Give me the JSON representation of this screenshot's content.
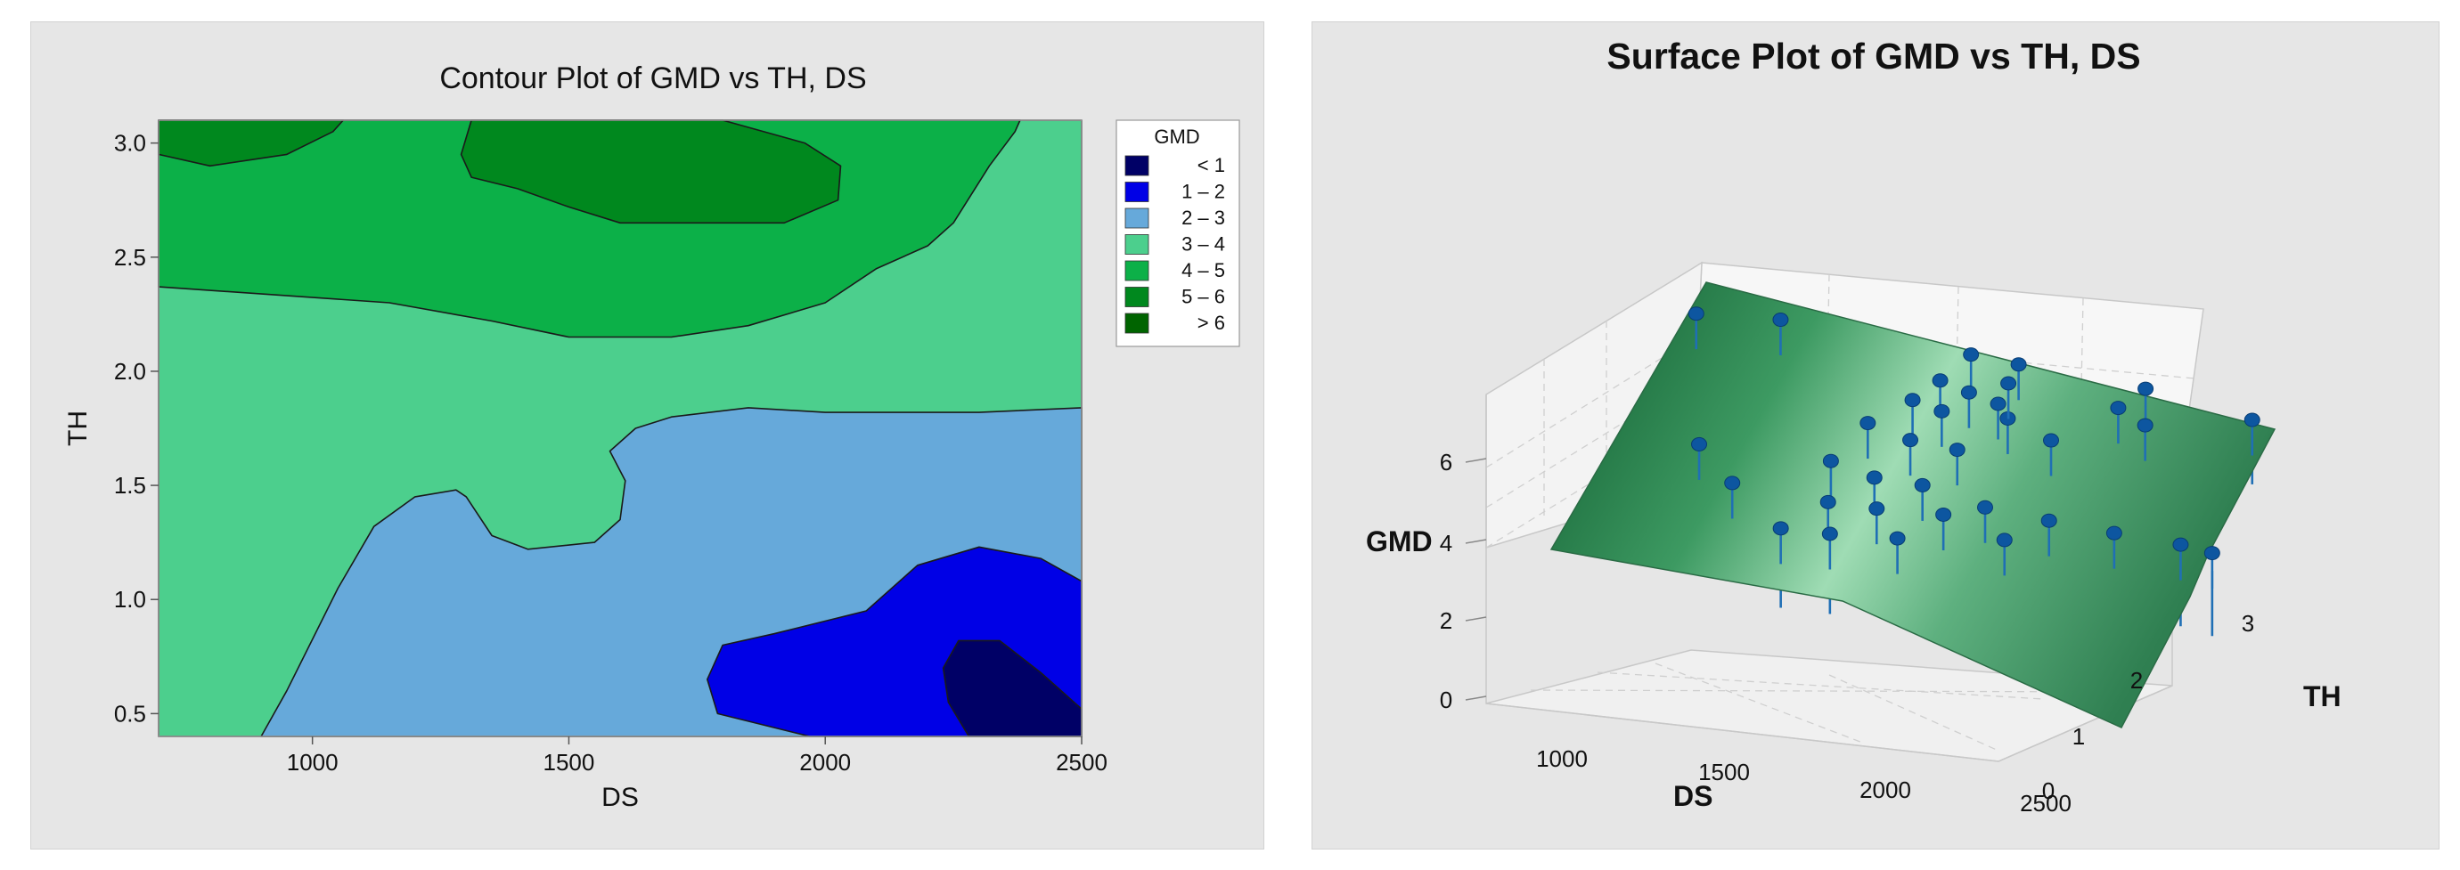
{
  "chart_data": [
    {
      "type": "contour",
      "title": "Contour Plot of GMD vs TH, DS",
      "xlabel": "DS",
      "ylabel": "TH",
      "xlim": [
        700,
        2500
      ],
      "ylim": [
        0.4,
        3.1
      ],
      "xticks": [
        "1000",
        "1500",
        "2000",
        "2500"
      ],
      "yticks": [
        "0.5",
        "1.0",
        "1.5",
        "2.0",
        "2.5",
        "3.0"
      ],
      "legend": {
        "title": "GMD",
        "entries": [
          {
            "label": "<  1",
            "color": "#000066"
          },
          {
            "label": "1 –  2",
            "color": "#0000e6"
          },
          {
            "label": "2 –  3",
            "color": "#66a9da"
          },
          {
            "label": "3 –  4",
            "color": "#4ccf8d"
          },
          {
            "label": "4 –  5",
            "color": "#0cb048"
          },
          {
            "label": "5 –  6",
            "color": "#00881e"
          },
          {
            "label": ">  6",
            "color": "#006400"
          }
        ]
      },
      "regions": [
        {
          "level": "3 - 4",
          "color": "#4ccf8d",
          "points": [
            [
              700,
              0.4
            ],
            [
              2500,
              0.4
            ],
            [
              2500,
              3.1
            ],
            [
              700,
              3.1
            ]
          ]
        },
        {
          "level": "4 - 5",
          "color": "#0cb048",
          "points": [
            [
              700,
              2.37
            ],
            [
              1150,
              2.3
            ],
            [
              1350,
              2.22
            ],
            [
              1500,
              2.15
            ],
            [
              1700,
              2.15
            ],
            [
              1850,
              2.2
            ],
            [
              2000,
              2.3
            ],
            [
              2100,
              2.45
            ],
            [
              2200,
              2.55
            ],
            [
              2250,
              2.65
            ],
            [
              2320,
              2.9
            ],
            [
              2370,
              3.05
            ],
            [
              2380,
              3.1
            ],
            [
              700,
              3.1
            ]
          ]
        },
        {
          "level": "5 - 6",
          "color": "#00881e",
          "points": [
            [
              700,
              2.95
            ],
            [
              800,
              2.9
            ],
            [
              950,
              2.95
            ],
            [
              1040,
              3.05
            ],
            [
              1060,
              3.1
            ],
            [
              700,
              3.1
            ]
          ]
        },
        {
          "level": "5 - 6",
          "color": "#00881e",
          "points": [
            [
              1310,
              3.1
            ],
            [
              1800,
              3.1
            ],
            [
              1960,
              3.0
            ],
            [
              2030,
              2.9
            ],
            [
              2025,
              2.75
            ],
            [
              1920,
              2.65
            ],
            [
              1600,
              2.65
            ],
            [
              1500,
              2.72
            ],
            [
              1400,
              2.8
            ],
            [
              1310,
              2.85
            ],
            [
              1290,
              2.95
            ]
          ]
        },
        {
          "level": "2 - 3",
          "color": "#66a9da",
          "points": [
            [
              900,
              0.4
            ],
            [
              2500,
              0.4
            ],
            [
              2500,
              1.84
            ],
            [
              2300,
              1.82
            ],
            [
              2000,
              1.82
            ],
            [
              1850,
              1.84
            ],
            [
              1700,
              1.8
            ],
            [
              1630,
              1.75
            ],
            [
              1580,
              1.65
            ],
            [
              1610,
              1.52
            ],
            [
              1600,
              1.35
            ],
            [
              1550,
              1.25
            ],
            [
              1420,
              1.22
            ],
            [
              1350,
              1.28
            ],
            [
              1300,
              1.45
            ],
            [
              1280,
              1.48
            ],
            [
              1200,
              1.45
            ],
            [
              1120,
              1.32
            ],
            [
              1050,
              1.05
            ],
            [
              950,
              0.6
            ]
          ]
        },
        {
          "level": "1 - 2",
          "color": "#0000e6",
          "points": [
            [
              1970,
              0.4
            ],
            [
              2500,
              0.4
            ],
            [
              2500,
              1.08
            ],
            [
              2420,
              1.18
            ],
            [
              2300,
              1.23
            ],
            [
              2180,
              1.15
            ],
            [
              2080,
              0.95
            ],
            [
              1900,
              0.85
            ],
            [
              1800,
              0.8
            ],
            [
              1770,
              0.65
            ],
            [
              1790,
              0.5
            ]
          ]
        },
        {
          "level": "< 1",
          "color": "#000066",
          "points": [
            [
              2280,
              0.4
            ],
            [
              2500,
              0.4
            ],
            [
              2500,
              0.52
            ],
            [
              2420,
              0.68
            ],
            [
              2340,
              0.82
            ],
            [
              2260,
              0.82
            ],
            [
              2230,
              0.7
            ],
            [
              2240,
              0.55
            ]
          ]
        }
      ]
    },
    {
      "type": "surface3d",
      "title": "Surface Plot of GMD vs TH, DS",
      "xlabel": "DS",
      "ylabel": "TH",
      "zlabel": "GMD",
      "xticks": [
        "1000",
        "1500",
        "2000",
        "2500"
      ],
      "yticks": [
        "0",
        "1",
        "2",
        "3"
      ],
      "zticks": [
        "0",
        "2",
        "4",
        "6"
      ],
      "surface_color": "#3f9a63",
      "points": [
        {
          "ds": 700,
          "th": 2.9,
          "gmd": 6.2
        },
        {
          "ds": 950,
          "th": 3.0,
          "gmd": 6.0
        },
        {
          "ds": 1550,
          "th": 3.0,
          "gmd": 5.5
        },
        {
          "ds": 1700,
          "th": 3.0,
          "gmd": 5.3
        },
        {
          "ds": 2100,
          "th": 3.0,
          "gmd": 4.9
        },
        {
          "ds": 1500,
          "th": 2.6,
          "gmd": 5.2
        },
        {
          "ds": 1600,
          "th": 2.5,
          "gmd": 5.0
        },
        {
          "ds": 1700,
          "th": 2.4,
          "gmd": 4.8
        },
        {
          "ds": 1450,
          "th": 2.3,
          "gmd": 5.0
        },
        {
          "ds": 1550,
          "th": 2.2,
          "gmd": 4.8
        },
        {
          "ds": 1750,
          "th": 2.2,
          "gmd": 4.6
        },
        {
          "ds": 1350,
          "th": 2.0,
          "gmd": 4.6
        },
        {
          "ds": 1500,
          "th": 1.8,
          "gmd": 4.4
        },
        {
          "ds": 1650,
          "th": 1.7,
          "gmd": 4.2
        },
        {
          "ds": 1300,
          "th": 1.5,
          "gmd": 4.2
        },
        {
          "ds": 1450,
          "th": 1.3,
          "gmd": 3.9
        },
        {
          "ds": 1600,
          "th": 1.2,
          "gmd": 3.7
        },
        {
          "ds": 1350,
          "th": 1.0,
          "gmd": 3.6
        },
        {
          "ds": 1500,
          "th": 0.9,
          "gmd": 3.4
        },
        {
          "ds": 1700,
          "th": 0.8,
          "gmd": 3.1
        },
        {
          "ds": 1250,
          "th": 0.7,
          "gmd": 3.3
        },
        {
          "ds": 1400,
          "th": 0.6,
          "gmd": 3.1
        },
        {
          "ds": 1600,
          "th": 0.5,
          "gmd": 2.8
        },
        {
          "ds": 900,
          "th": 1.6,
          "gmd": 4.8
        },
        {
          "ds": 1050,
          "th": 1.2,
          "gmd": 4.2
        },
        {
          "ds": 1900,
          "th": 2.0,
          "gmd": 4.0
        },
        {
          "ds": 2050,
          "th": 2.6,
          "gmd": 4.6
        },
        {
          "ds": 2150,
          "th": 2.4,
          "gmd": 4.2
        },
        {
          "ds": 2450,
          "th": 2.8,
          "gmd": 4.3
        },
        {
          "ds": 1800,
          "th": 1.0,
          "gmd": 2.8
        },
        {
          "ds": 2000,
          "th": 0.8,
          "gmd": 2.3
        },
        {
          "ds": 2200,
          "th": 0.6,
          "gmd": 1.7
        },
        {
          "ds": 2400,
          "th": 0.4,
          "gmd": 1.0
        },
        {
          "ds": 2500,
          "th": 0.2,
          "gmd": 0.6
        },
        {
          "ds": 1900,
          "th": 0.5,
          "gmd": 2.1
        },
        {
          "ds": 1700,
          "th": 2.7,
          "gmd": 5.1
        }
      ]
    }
  ]
}
